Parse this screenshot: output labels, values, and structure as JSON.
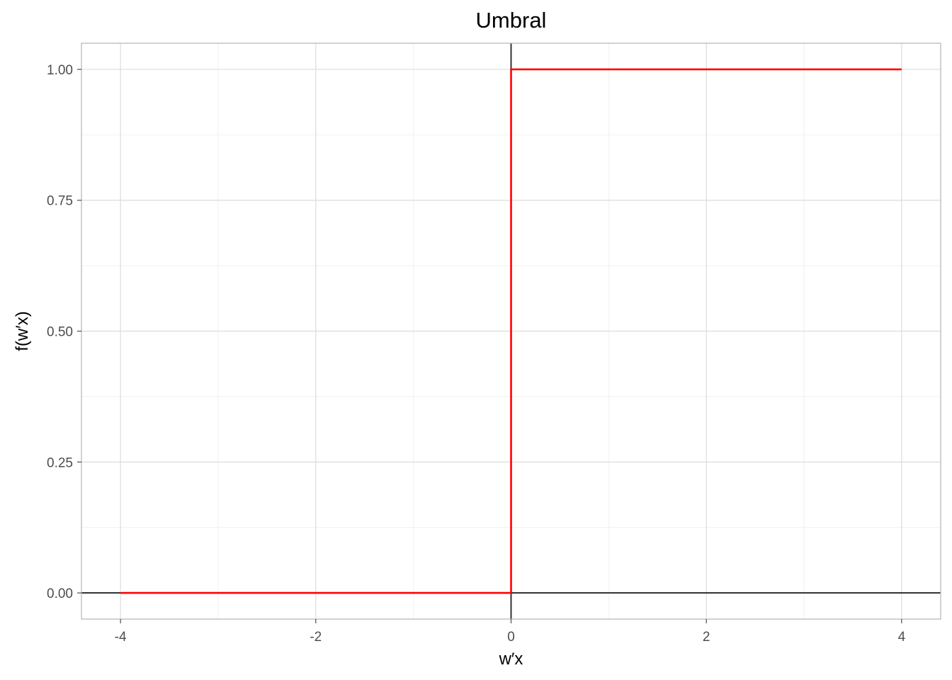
{
  "chart_data": {
    "type": "line",
    "title": "Umbral",
    "xlabel": "w′x",
    "ylabel": "f(w′x)",
    "xlim": [
      -4.4,
      4.4
    ],
    "ylim": [
      -0.05,
      1.05
    ],
    "x_ticks": [
      -4,
      -2,
      0,
      2,
      4
    ],
    "x_tick_labels": [
      "-4",
      "-2",
      "0",
      "2",
      "4"
    ],
    "x_minor_ticks": [
      -3,
      -1,
      1,
      3
    ],
    "y_ticks": [
      0,
      0.25,
      0.5,
      0.75,
      1
    ],
    "y_tick_labels": [
      "0.00",
      "0.25",
      "0.50",
      "0.75",
      "1.00"
    ],
    "y_minor_ticks": [
      0.125,
      0.375,
      0.625,
      0.875
    ],
    "grid": true,
    "reference_lines": {
      "hline": 0,
      "vline": 0,
      "color": "#333333"
    },
    "series": [
      {
        "color": "#ff0000",
        "x": [
          -4,
          0,
          0,
          4
        ],
        "y": [
          0,
          0,
          1,
          1
        ]
      }
    ]
  }
}
